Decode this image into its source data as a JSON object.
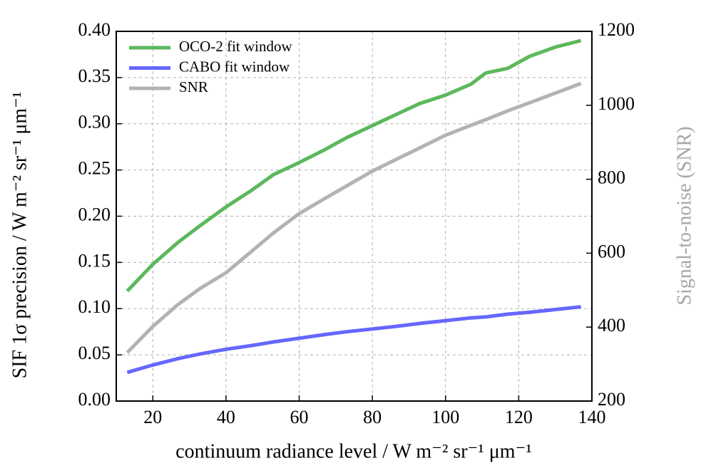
{
  "chart_data": {
    "type": "line",
    "x_label": "continuum radiance level / W m⁻² sr⁻¹ μm⁻¹",
    "y_label": "SIF 1σ precision / W m⁻² sr⁻¹ μm⁻¹",
    "y2_label": "Signal-to-noise (SNR)",
    "y2_label_color": "#a6a6a6",
    "x": [
      13,
      20,
      27,
      33,
      40,
      47,
      53,
      60,
      67,
      73,
      80,
      87,
      93,
      100,
      107,
      111,
      117,
      123,
      130,
      137
    ],
    "series": [
      {
        "name": "OCO-2 fit window",
        "color": "#5cb85c",
        "values": [
          0.119,
          0.148,
          0.172,
          0.19,
          0.21,
          0.228,
          0.245,
          0.258,
          0.272,
          0.285,
          0.298,
          0.311,
          0.322,
          0.331,
          0.343,
          0.355,
          0.36,
          0.373,
          0.383,
          0.39
        ]
      },
      {
        "name": "CABO fit window",
        "color": "#6666ff",
        "values": [
          0.031,
          0.039,
          0.046,
          0.051,
          0.056,
          0.06,
          0.064,
          0.068,
          0.072,
          0.075,
          0.078,
          0.081,
          0.084,
          0.087,
          0.09,
          0.091,
          0.094,
          0.096,
          0.099,
          0.102
        ]
      },
      {
        "name": "SNR",
        "color": "#b3b3b3",
        "axis": "y2",
        "values": [
          331,
          402,
          462,
          505,
          547,
          605,
          655,
          707,
          748,
          782,
          822,
          856,
          885,
          919,
          946,
          961,
          985,
          1007,
          1033,
          1059
        ]
      }
    ],
    "xlim": [
      10,
      140
    ],
    "xticks": [
      20,
      40,
      60,
      80,
      100,
      120,
      140
    ],
    "ylim": [
      0,
      0.4
    ],
    "yticks": [
      {
        "value": 0,
        "label": "0.00"
      },
      0.05,
      {
        "value": 0.1,
        "label": "0.10"
      },
      0.15,
      {
        "value": 0.2,
        "label": "0.20"
      },
      0.25,
      {
        "value": 0.3,
        "label": "0.30"
      },
      0.35,
      {
        "value": 0.4,
        "label": "0.40"
      }
    ],
    "y2lim": [
      200,
      1200
    ],
    "y2ticks": [
      200,
      400,
      600,
      800,
      1000,
      1200
    ],
    "grid": true,
    "legend": "upper left"
  }
}
